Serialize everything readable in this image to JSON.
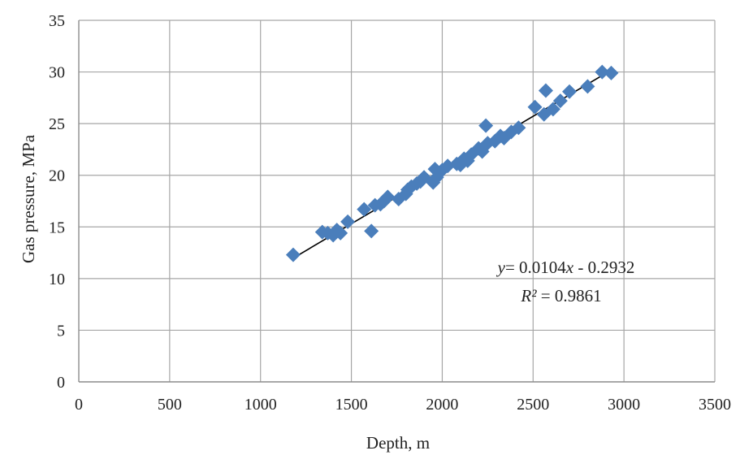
{
  "chart_data": {
    "type": "scatter",
    "title": "",
    "xlabel": "Depth, m",
    "ylabel": "Gas pressure, MPa",
    "xlim": [
      0,
      3500
    ],
    "ylim": [
      0,
      35
    ],
    "x_ticks": [
      0,
      500,
      1000,
      1500,
      2000,
      2500,
      3000,
      3500
    ],
    "y_ticks": [
      0,
      5,
      10,
      15,
      20,
      25,
      30,
      35
    ],
    "x_tick_labels": [
      "0",
      "500",
      "1000",
      "1500",
      "2000",
      "2500",
      "3000",
      "3500"
    ],
    "y_tick_labels": [
      "0",
      "5",
      "10",
      "15",
      "20",
      "25",
      "30",
      "35"
    ],
    "grid": true,
    "legend": "none",
    "marker": "diamond",
    "marker_color": "#4a7ebb",
    "trendline_color": "#000000",
    "series": [
      {
        "x": [
          1180,
          1340,
          1370,
          1400,
          1420,
          1440,
          1480,
          1570,
          1610,
          1630,
          1660,
          1680,
          1700,
          1760,
          1800,
          1810,
          1830,
          1860,
          1880,
          1900,
          1950,
          1960,
          1970,
          2000,
          2030,
          2080,
          2100,
          2120,
          2140,
          2160,
          2200,
          2220,
          2240,
          2250,
          2290,
          2320,
          2340,
          2380,
          2420,
          2510,
          2560,
          2570,
          2610,
          2650,
          2700,
          2800,
          2880,
          2930
        ],
        "y": [
          12.3,
          14.5,
          14.4,
          14.2,
          14.7,
          14.4,
          15.5,
          16.7,
          14.6,
          17.1,
          17.2,
          17.5,
          17.9,
          17.7,
          18.2,
          18.6,
          18.9,
          19.2,
          19.4,
          19.8,
          19.3,
          20.6,
          19.8,
          20.5,
          20.9,
          21.1,
          21.0,
          21.6,
          21.4,
          22.0,
          22.6,
          22.3,
          24.8,
          23.1,
          23.3,
          23.8,
          23.6,
          24.2,
          24.6,
          26.6,
          25.9,
          28.2,
          26.4,
          27.2,
          28.1,
          28.6,
          30.0,
          29.9
        ]
      }
    ],
    "trendline": {
      "x_start": 1180,
      "x_end": 2930,
      "slope": 0.0104,
      "intercept": -0.2932,
      "equation_text": "= 0.0104",
      "equation_y": "y",
      "equation_x": "x",
      "equation_tail": " - 0.2932",
      "r2_label": "R²",
      "r2_value": " = 0.9861"
    }
  }
}
